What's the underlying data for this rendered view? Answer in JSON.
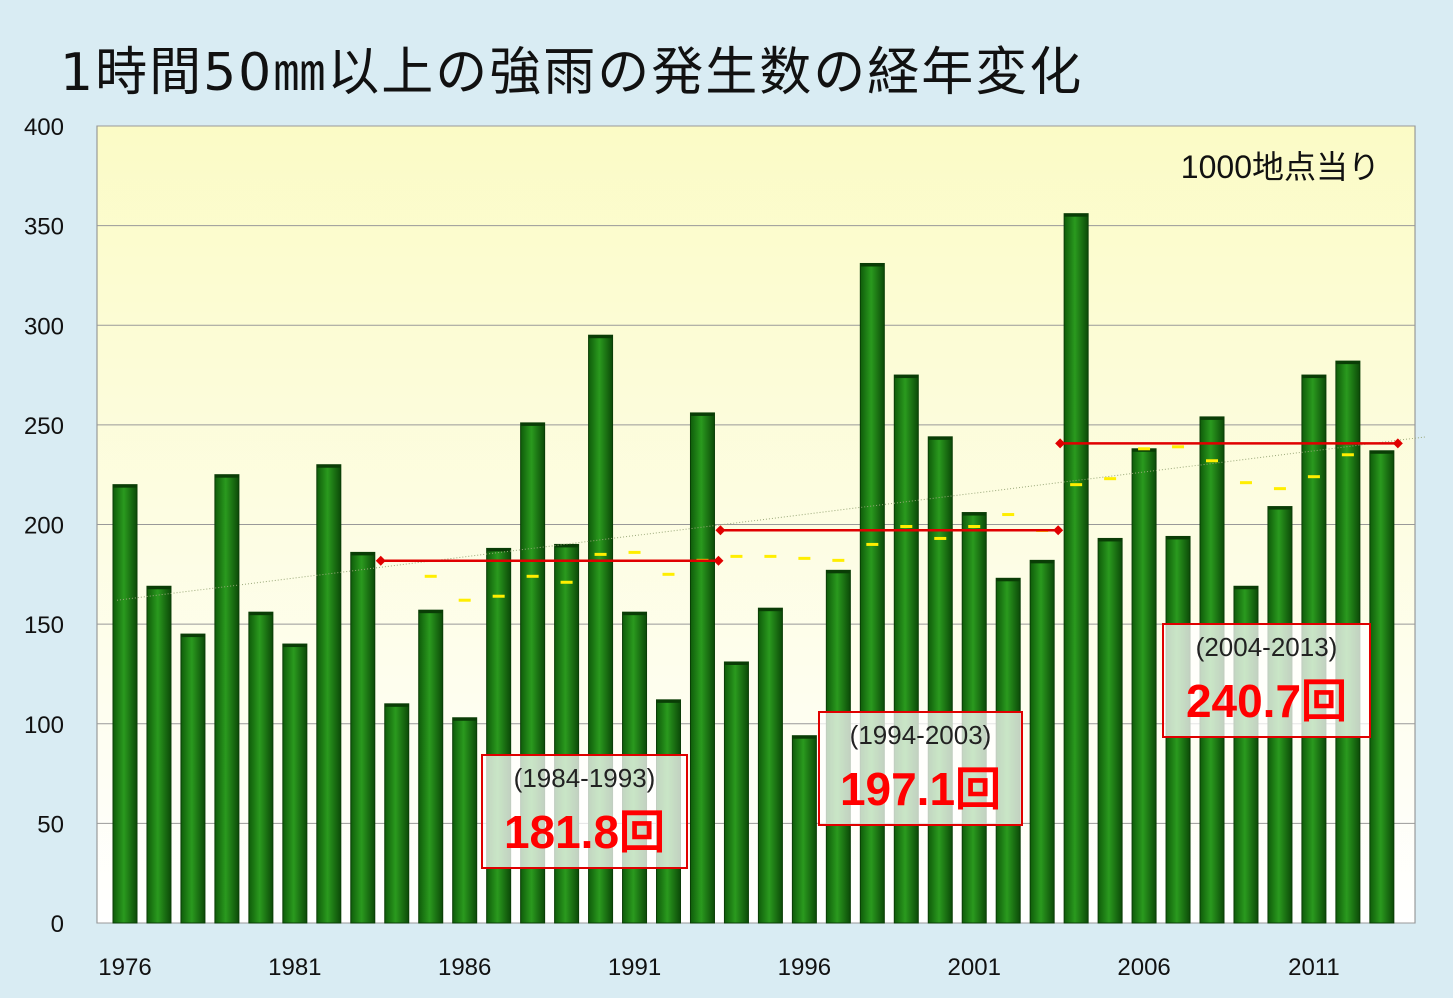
{
  "title": "1時間50㎜以上の強雨の発生数の経年変化",
  "chart_data": {
    "type": "bar",
    "title": "1時間50㎜以上の強雨の発生数の経年変化",
    "unit_note": "1000地点当り",
    "x": [
      1976,
      1977,
      1978,
      1979,
      1980,
      1981,
      1982,
      1983,
      1984,
      1985,
      1986,
      1987,
      1988,
      1989,
      1990,
      1991,
      1992,
      1993,
      1994,
      1995,
      1996,
      1997,
      1998,
      1999,
      2000,
      2001,
      2002,
      2003,
      2004,
      2005,
      2006,
      2007,
      2008,
      2009,
      2010,
      2011,
      2012,
      2013
    ],
    "values": [
      220,
      169,
      145,
      225,
      156,
      140,
      230,
      186,
      110,
      157,
      103,
      188,
      251,
      190,
      295,
      156,
      112,
      256,
      131,
      158,
      94,
      177,
      331,
      275,
      244,
      206,
      173,
      182,
      356,
      193,
      238,
      194,
      254,
      169,
      209,
      275,
      282,
      237
    ],
    "moving_avg_x": [
      1985,
      1986,
      1987,
      1988,
      1989,
      1990,
      1991,
      1992,
      1993,
      1994,
      1995,
      1996,
      1997,
      1998,
      1999,
      2000,
      2001,
      2002,
      2003,
      2004,
      2005,
      2006,
      2007,
      2008,
      2009,
      2010,
      2011,
      2012
    ],
    "moving_avg": [
      174,
      162,
      164,
      174,
      171,
      185,
      186,
      175,
      182,
      184,
      184,
      183,
      182,
      190,
      199,
      193,
      199,
      205,
      197,
      220,
      223,
      238,
      239,
      232,
      221,
      218,
      224,
      235
    ],
    "trend": {
      "start": [
        1976,
        162
      ],
      "end": [
        2014,
        244
      ]
    },
    "period_means": [
      {
        "label": "(1984-1993)",
        "value_text": "181.8回",
        "start": 1984,
        "end": 1993,
        "mean": 181.8
      },
      {
        "label": "(1994-2003)",
        "value_text": "197.1回",
        "start": 1994,
        "end": 2003,
        "mean": 197.1
      },
      {
        "label": "(2004-2013)",
        "value_text": "240.7回",
        "start": 2004,
        "end": 2013,
        "mean": 240.7
      }
    ],
    "xticks": [
      "1976",
      "1981",
      "1986",
      "1991",
      "1996",
      "2001",
      "2006",
      "2011"
    ],
    "yticks": [
      "0",
      "50",
      "100",
      "150",
      "200",
      "250",
      "300",
      "350",
      "400"
    ],
    "ylim": [
      0,
      400
    ],
    "grid": true,
    "colors": {
      "bar": "#1a7a12",
      "period_line": "#e00000",
      "moving_avg": "#ffee00",
      "plot_bg": "#fefee6"
    }
  }
}
